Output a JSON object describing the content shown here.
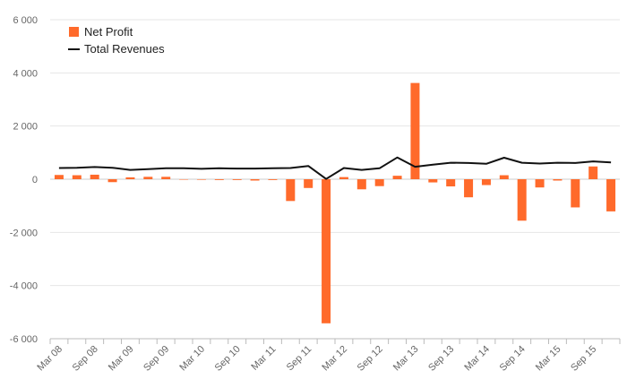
{
  "chart_data": {
    "type": "bar+line",
    "title": "",
    "xlabel": "",
    "ylabel": "",
    "ylim": [
      -6000,
      6000
    ],
    "yticks": [
      6000,
      4000,
      2000,
      0,
      -2000,
      -4000,
      -6000
    ],
    "ytick_labels": [
      "6 000",
      "4 000",
      "2 000",
      "0",
      "-2 000",
      "-4 000",
      "-6 000"
    ],
    "categories": [
      "Mar 08",
      "Jun 08",
      "Sep 08",
      "Dec 08",
      "Mar 09",
      "Jun 09",
      "Sep 09",
      "Dec 09",
      "Mar 10",
      "Jun 10",
      "Sep 10",
      "Dec 10",
      "Mar 11",
      "Jun 11",
      "Sep 11",
      "Dec 11",
      "Mar 12",
      "Jun 12",
      "Sep 12",
      "Dec 12",
      "Mar 13",
      "Jun 13",
      "Sep 13",
      "Dec 13",
      "Mar 14",
      "Jun 14",
      "Sep 14",
      "Dec 14",
      "Mar 15",
      "Jun 15",
      "Sep 15",
      "Dec 15"
    ],
    "xtick_labels": [
      "Mar 08",
      "Sep 08",
      "Mar 09",
      "Sep 09",
      "Mar 10",
      "Sep 10",
      "Mar 11",
      "Sep 11",
      "Mar 12",
      "Sep 12",
      "Mar 13",
      "Sep 13",
      "Mar 14",
      "Sep 14",
      "Mar 15",
      "Sep 15"
    ],
    "series": [
      {
        "name": "Net Profit",
        "kind": "bar",
        "color": "#ff6a2b",
        "values": [
          160,
          150,
          170,
          -110,
          70,
          90,
          90,
          0,
          -20,
          -30,
          -30,
          -50,
          -30,
          -820,
          -330,
          -5420,
          80,
          -380,
          -260,
          130,
          3620,
          -120,
          -270,
          -680,
          -220,
          150,
          -1560,
          -310,
          -50,
          -1060,
          480,
          -1210
        ]
      },
      {
        "name": "Total Revenues",
        "kind": "line",
        "color": "#111111",
        "values": [
          420,
          430,
          460,
          430,
          350,
          380,
          410,
          410,
          390,
          410,
          400,
          400,
          410,
          420,
          500,
          10,
          420,
          350,
          410,
          820,
          470,
          550,
          620,
          610,
          580,
          810,
          620,
          590,
          620,
          610,
          670,
          630
        ]
      }
    ],
    "legend_position": "top-left",
    "grid": true
  }
}
